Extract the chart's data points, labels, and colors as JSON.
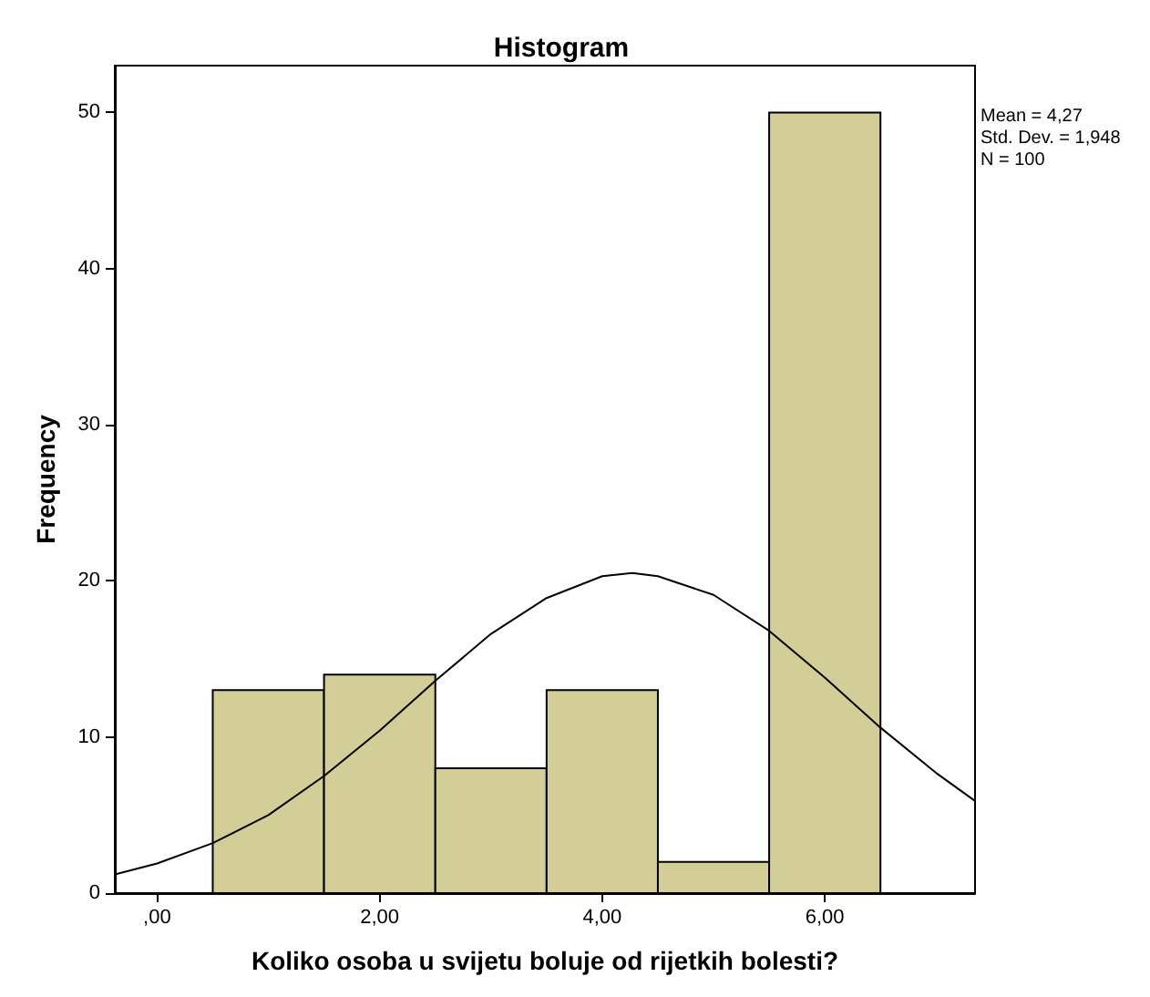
{
  "chart_data": {
    "type": "histogram",
    "title": "Histogram",
    "xlabel": "Koliko osoba u svijetu boluje od rijetkih bolesti?",
    "ylabel": "Frequency",
    "bins": [
      0.5,
      1.5,
      2.5,
      3.5,
      4.5,
      5.5,
      6.5
    ],
    "values": [
      13,
      14,
      8,
      13,
      2,
      50
    ],
    "color": "#d3ce97",
    "series": [
      {
        "type": "line",
        "color": "#000000",
        "x": [
          -0.38,
          0,
          0.5,
          1,
          1.5,
          2,
          2.5,
          3,
          3.5,
          4,
          4.27,
          4.5,
          5,
          5.5,
          6,
          6.5,
          7,
          7.35
        ],
        "values": [
          1.2,
          1.9,
          3.2,
          5,
          7.5,
          10.4,
          13.6,
          16.6,
          18.9,
          20.3,
          20.5,
          20.3,
          19.1,
          16.8,
          13.8,
          10.6,
          7.7,
          5.9
        ]
      }
    ],
    "xlim": [
      -0.38,
      7.35
    ],
    "xticks": [
      {
        "value": 0,
        "label": ",00"
      },
      {
        "value": 2,
        "label": "2,00"
      },
      {
        "value": 4,
        "label": "4,00"
      },
      {
        "value": 6,
        "label": "6,00"
      }
    ],
    "ylim": [
      0,
      53
    ],
    "yticks": [
      0,
      10,
      20,
      30,
      40,
      50
    ],
    "grid": false,
    "marker": "none",
    "annotations": [
      "Mean = 4,27",
      "Std. Dev. = 1,948",
      "N = 100"
    ]
  }
}
